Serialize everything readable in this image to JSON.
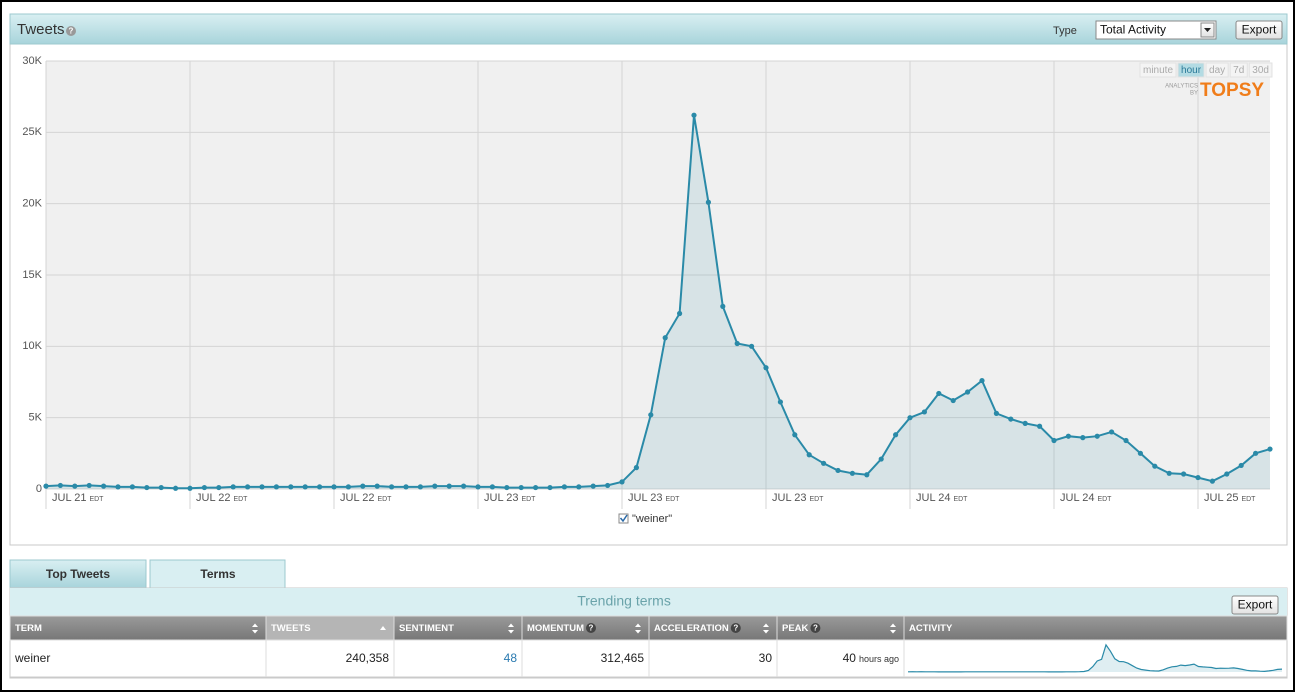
{
  "header": {
    "title": "Tweets",
    "type_label": "Type",
    "type_value": "Total Activity",
    "export": "Export"
  },
  "time_buttons": [
    "minute",
    "hour",
    "day",
    "7d",
    "30d"
  ],
  "active_time": "hour",
  "branding": {
    "by_lines": [
      "ANALYTICS",
      "BY"
    ],
    "name": "TOPSY"
  },
  "chart_data": {
    "type": "line",
    "categories": [
      "JUL 21",
      null,
      null,
      null,
      null,
      null,
      null,
      null,
      null,
      null,
      "JUL 22",
      null,
      null,
      null,
      null,
      null,
      null,
      null,
      null,
      null,
      "JUL 22",
      null,
      null,
      null,
      null,
      null,
      null,
      null,
      null,
      null,
      "JUL 23",
      null,
      null,
      null,
      null,
      null,
      null,
      null,
      null,
      null,
      "JUL 23",
      null,
      null,
      null,
      null,
      null,
      null,
      null,
      null,
      null,
      "JUL 23",
      null,
      null,
      null,
      null,
      null,
      null,
      null,
      null,
      null,
      "JUL 24",
      null,
      null,
      null,
      null,
      null,
      null,
      null,
      null,
      null,
      "JUL 24",
      null,
      null,
      null,
      null,
      null,
      null,
      null,
      null,
      null,
      "JUL 25",
      null,
      null,
      null,
      null,
      null
    ],
    "timezone": "EDT",
    "series": [
      {
        "name": "\"weiner\"",
        "color": "#2a8aa8",
        "values": [
          200,
          250,
          200,
          250,
          200,
          150,
          150,
          100,
          100,
          50,
          50,
          100,
          100,
          150,
          150,
          150,
          150,
          150,
          150,
          150,
          150,
          150,
          200,
          200,
          150,
          150,
          150,
          200,
          200,
          200,
          150,
          150,
          100,
          100,
          100,
          100,
          150,
          150,
          200,
          250,
          500,
          1500,
          5200,
          10600,
          12300,
          26200,
          20100,
          12800,
          10200,
          10000,
          8500,
          6100,
          3800,
          2400,
          1800,
          1300,
          1100,
          1000,
          2100,
          3800,
          5000,
          5400,
          6700,
          6200,
          6800,
          7600,
          5300,
          4900,
          4600,
          4400,
          3400,
          3700,
          3600,
          3700,
          4000,
          3400,
          2500,
          1600,
          1100,
          1050,
          800,
          550,
          1050,
          1650,
          2500,
          2800
        ]
      }
    ],
    "ylim": [
      0,
      30000
    ],
    "yticks": [
      0,
      {
        "value": 5000,
        "label": "5K"
      },
      {
        "value": 10000,
        "label": "10K"
      },
      {
        "value": 15000,
        "label": "15K"
      },
      {
        "value": 20000,
        "label": "20K"
      },
      {
        "value": 25000,
        "label": "25K"
      },
      {
        "value": 30000,
        "label": "30K"
      }
    ],
    "grid": true
  },
  "tabs": [
    "Top Tweets",
    "Terms"
  ],
  "active_tab": "Terms",
  "trending": {
    "title": "Trending terms",
    "export": "Export",
    "columns": [
      "TERM",
      "TWEETS",
      "SENTIMENT",
      "MOMENTUM",
      "ACCELERATION",
      "PEAK",
      "ACTIVITY"
    ],
    "rows": [
      {
        "term": "weiner",
        "tweets": "240,358",
        "sentiment": 48,
        "momentum": "312,465",
        "acceleration": 30,
        "peak": 40,
        "peak_unit": "hours ago"
      }
    ]
  }
}
